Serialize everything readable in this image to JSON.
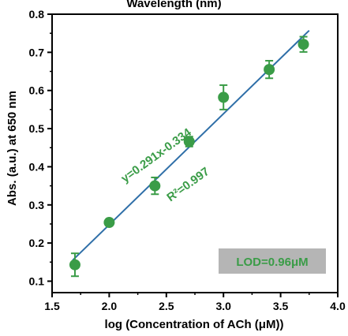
{
  "chart_data": {
    "type": "scatter",
    "title": "Wavelength (nm)",
    "xlabel": "log (Concentration of ACh (μM))",
    "ylabel": "Abs. (a.u.) at 650 nm",
    "xlim": [
      1.5,
      4.0
    ],
    "ylim": [
      0.07,
      0.8
    ],
    "x_ticks": [
      1.5,
      2.0,
      2.5,
      3.0,
      3.5,
      4.0
    ],
    "x_tick_labels": [
      "1.5",
      "2.0",
      "2.5",
      "3.0",
      "3.5",
      "4.0"
    ],
    "y_ticks": [
      0.1,
      0.2,
      0.3,
      0.4,
      0.5,
      0.6,
      0.7,
      0.8
    ],
    "y_tick_labels": [
      "0.1",
      "0.2",
      "0.3",
      "0.4",
      "0.5",
      "0.6",
      "0.7",
      "0.8"
    ],
    "series": [
      {
        "points": [
          {
            "x": 1.7,
            "y": 0.143,
            "err": 0.03
          },
          {
            "x": 2.0,
            "y": 0.254,
            "err": 0.0
          },
          {
            "x": 2.4,
            "y": 0.35,
            "err": 0.022
          },
          {
            "x": 2.7,
            "y": 0.466,
            "err": 0.013
          },
          {
            "x": 3.0,
            "y": 0.582,
            "err": 0.032
          },
          {
            "x": 3.4,
            "y": 0.655,
            "err": 0.023
          },
          {
            "x": 3.7,
            "y": 0.721,
            "err": 0.02
          }
        ]
      }
    ],
    "fit": {
      "slope": 0.291,
      "intercept": -0.334
    },
    "equation_label": "y=0.291x-0.334",
    "r2_label": "R²=0.997",
    "lod_label": "LOD=0.96μM",
    "colors": {
      "points": "#3a9c47",
      "fit_line": "#2f6fa8",
      "annotation": "#3a9c47",
      "lod_box": "#b5b5b5"
    },
    "grid": false,
    "legend": "none"
  }
}
